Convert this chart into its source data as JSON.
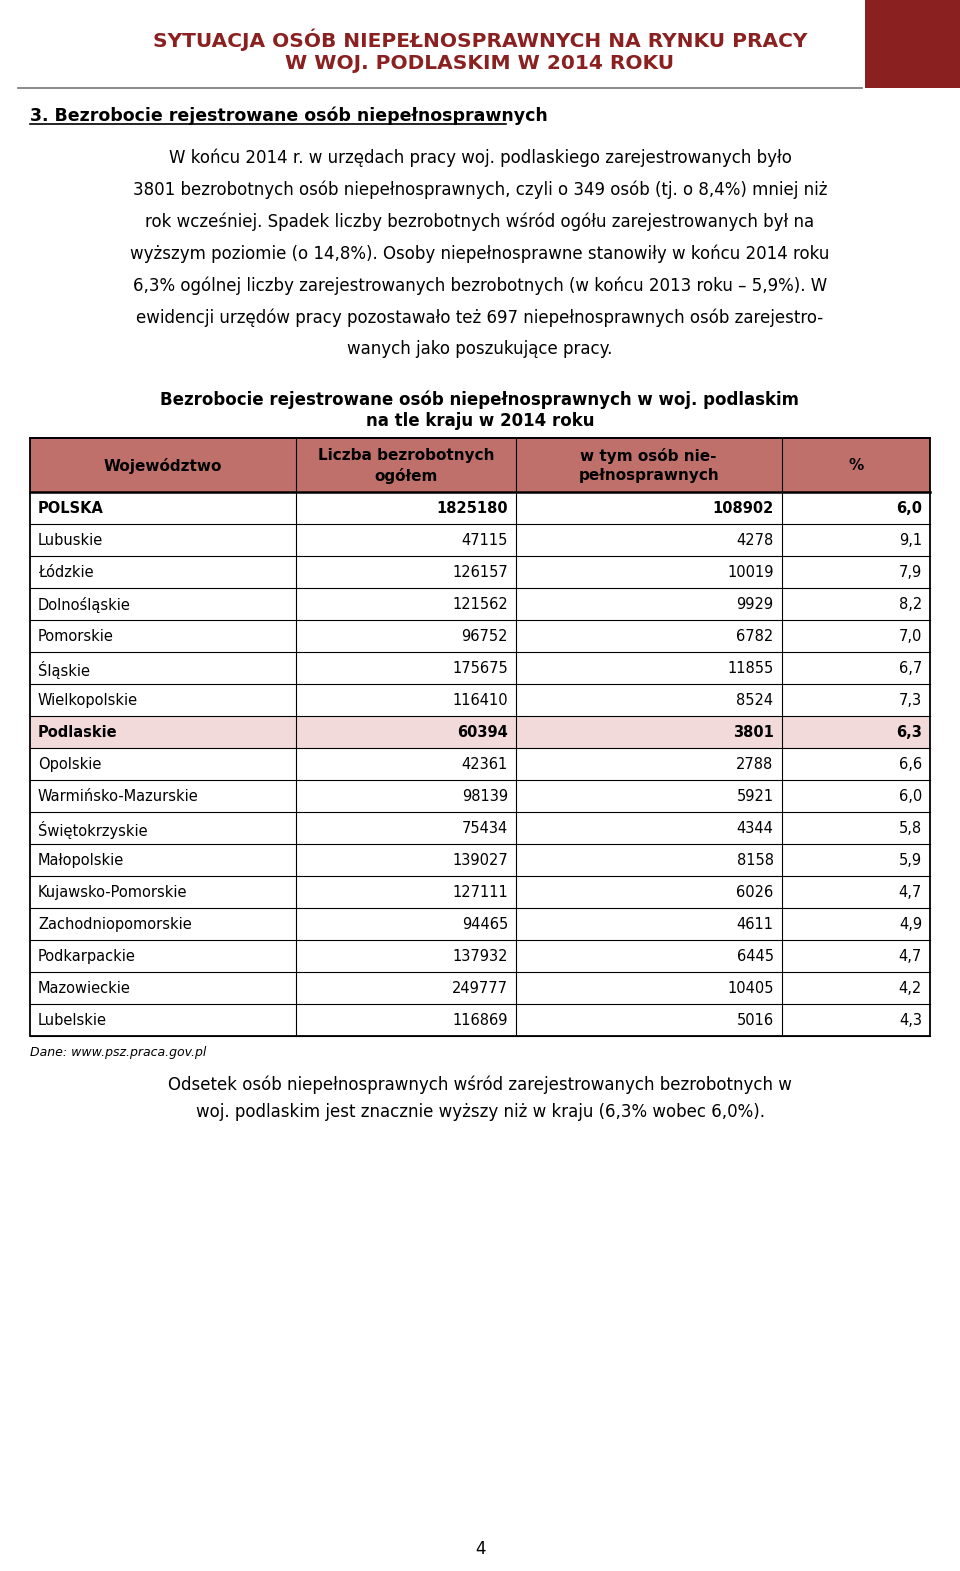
{
  "page_title_line1": "SYTUACJA OSÓB NIEPEŁNOSPRAWNYCH NA RYNKU PRACY",
  "page_title_line2": "W WOJ. PODLASKIM W 2014 ROKU",
  "page_title_color": "#8B2020",
  "header_rect_color": "#8B2020",
  "section_heading": "3. Bezrobocie rejestrowane osób niepełnosprawnych",
  "para_lines": [
    "W końcu 2014 r. w urzędach pracy woj. podlaskiego zarejestrowanych było",
    "3801 bezrobotnych osób niepełnosprawnych, czyli o 349 osób (tj. o 8,4%) mniej niż",
    "rok wcześniej. Spadek liczby bezrobotnych wśród ogółu zarejestrowanych był na",
    "wyższym poziomie (o 14,8%). Osoby niepełnosprawne stanowiły w końcu 2014 roku",
    "6,3% ogólnej liczby zarejestrowanych bezrobotnych (w końcu 2013 roku – 5,9%). W",
    "ewidencji urzędów pracy pozostawało też 697 niepełnosprawnych osób zarejestro-",
    "wanych jako poszukujące pracy."
  ],
  "table_title_line1": "Bezrobocie rejestrowane osób niepełnosprawnych w woj. podlaskim",
  "table_title_line2": "na tle kraju w 2014 roku",
  "col_headers": [
    "Województwo",
    "Liczba bezrobotnych\nogółem",
    "w tym osób nie-\npełnosprawnych",
    "%"
  ],
  "header_bg": "#C0706A",
  "header_text_color": "#000000",
  "rows": [
    [
      "POLSKA",
      "1825180",
      "108902",
      "6,0",
      true
    ],
    [
      "Lubuskie",
      "47115",
      "4278",
      "9,1",
      false
    ],
    [
      "Łódzkie",
      "126157",
      "10019",
      "7,9",
      false
    ],
    [
      "Dolnośląskie",
      "121562",
      "9929",
      "8,2",
      false
    ],
    [
      "Pomorskie",
      "96752",
      "6782",
      "7,0",
      false
    ],
    [
      "Śląskie",
      "175675",
      "11855",
      "6,7",
      false
    ],
    [
      "Wielkopolskie",
      "116410",
      "8524",
      "7,3",
      false
    ],
    [
      "Podlaskie",
      "60394",
      "3801",
      "6,3",
      true
    ],
    [
      "Opolskie",
      "42361",
      "2788",
      "6,6",
      false
    ],
    [
      "Warmińsko-Mazurskie",
      "98139",
      "5921",
      "6,0",
      false
    ],
    [
      "Świętokrzyskie",
      "75434",
      "4344",
      "5,8",
      false
    ],
    [
      "Małopolskie",
      "139027",
      "8158",
      "5,9",
      false
    ],
    [
      "Kujawsko-Pomorskie",
      "127111",
      "6026",
      "4,7",
      false
    ],
    [
      "Zachodniopomorskie",
      "94465",
      "4611",
      "4,9",
      false
    ],
    [
      "Podkarpackie",
      "137932",
      "6445",
      "4,7",
      false
    ],
    [
      "Mazowieckie",
      "249777",
      "10405",
      "4,2",
      false
    ],
    [
      "Lubelskie",
      "116869",
      "5016",
      "4,3",
      false
    ]
  ],
  "podlaskie_row_bg": "#F2DADA",
  "dane_note": "Dane: www.psz.praca.gov.pl",
  "footer_lines": [
    "Odsetek osób niepełnosprawnych wśród zarejestrowanych bezrobotnych w",
    "woj. podlaskim jest znacznie wyższy niż w kraju (6,3% wobec 6,0%)."
  ],
  "page_number": "4",
  "bg_color": "#FFFFFF",
  "text_color": "#000000",
  "border_color": "#000000"
}
